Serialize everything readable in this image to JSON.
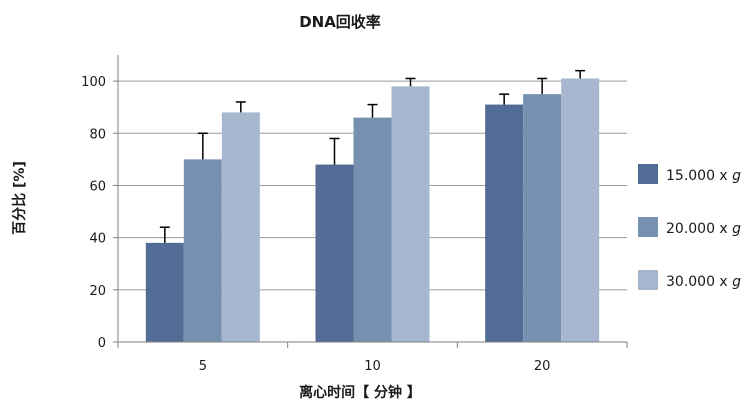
{
  "chart_data": {
    "type": "bar",
    "title": "DNA回收率",
    "xlabel": "离心时间【 分钟 】",
    "ylabel": "百分比 [%]",
    "categories": [
      "5",
      "10",
      "20"
    ],
    "ylim": [
      0,
      110
    ],
    "yticks": [
      0,
      20,
      40,
      60,
      80,
      100
    ],
    "grid": true,
    "legend_position": "right",
    "series": [
      {
        "name": "15.000 x g",
        "name_prefix": "15.000 x ",
        "name_suffix": "g",
        "color": "#526c95",
        "values": [
          38,
          68,
          91
        ],
        "errors": [
          6,
          10,
          4
        ]
      },
      {
        "name": "20.000 x g",
        "name_prefix": "20.000 x ",
        "name_suffix": "g",
        "color": "#7691b0",
        "values": [
          70,
          86,
          95
        ],
        "errors": [
          10,
          5,
          6
        ]
      },
      {
        "name": "30.000 x g",
        "name_prefix": "30.000 x ",
        "name_suffix": "g",
        "color": "#a8b7d0",
        "values": [
          88,
          98,
          101
        ],
        "errors": [
          4,
          3,
          3
        ]
      }
    ]
  }
}
